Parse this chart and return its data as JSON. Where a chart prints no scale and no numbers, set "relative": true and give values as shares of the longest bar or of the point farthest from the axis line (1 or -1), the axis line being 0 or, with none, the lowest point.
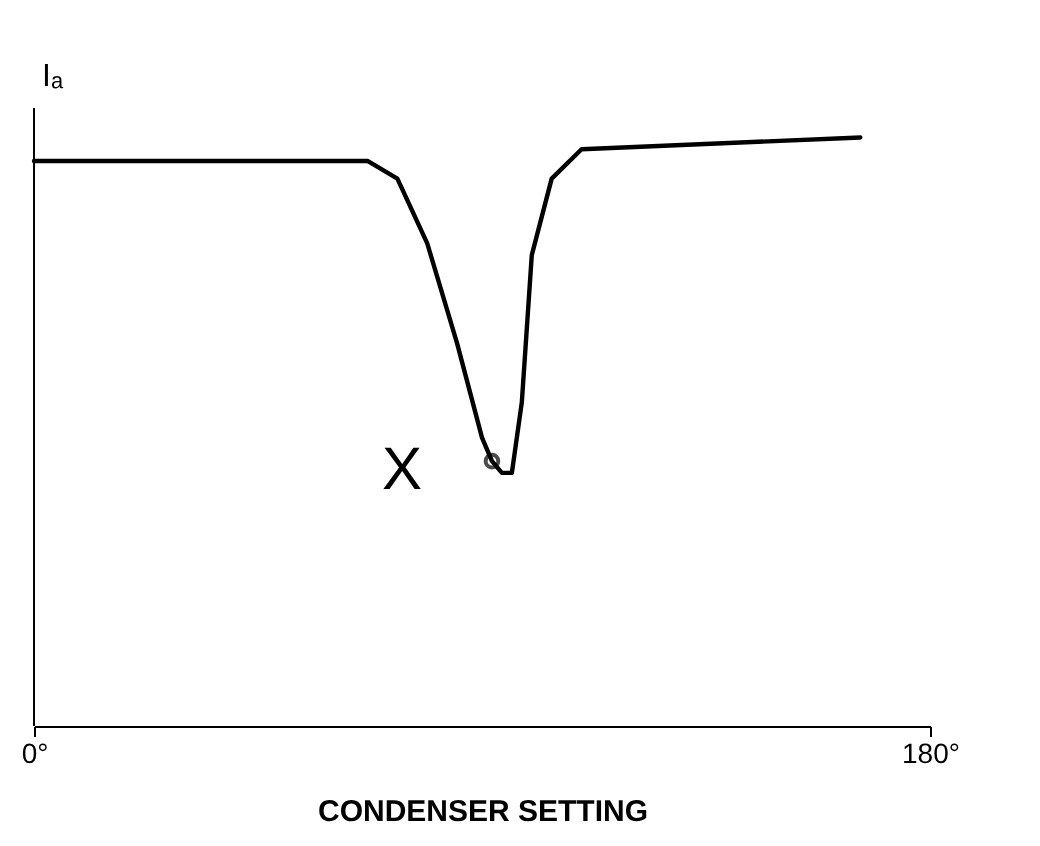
{
  "chart_data": {
    "type": "line",
    "relative": true,
    "xlabel": "CONDENSER SETTING",
    "ylabel": "Iₐ",
    "x": [
      0,
      67,
      73,
      79,
      85,
      90,
      92,
      94,
      96,
      98,
      100,
      104,
      110,
      166
    ],
    "series": [
      {
        "color": "#000000",
        "values": [
          0.96,
          0.96,
          0.93,
          0.82,
          0.65,
          0.49,
          0.45,
          0.43,
          0.43,
          0.55,
          0.8,
          0.93,
          0.98,
          1.0
        ]
      }
    ],
    "xlim": [
      0,
      180
    ],
    "xticks": [
      {
        "value": 0,
        "label": "0°"
      },
      {
        "value": 180,
        "label": "180°"
      }
    ],
    "annotations": [
      {
        "text": "X",
        "x": 92,
        "y": 0.45
      }
    ],
    "grid": false,
    "marker": "none",
    "line_style": "solid"
  }
}
